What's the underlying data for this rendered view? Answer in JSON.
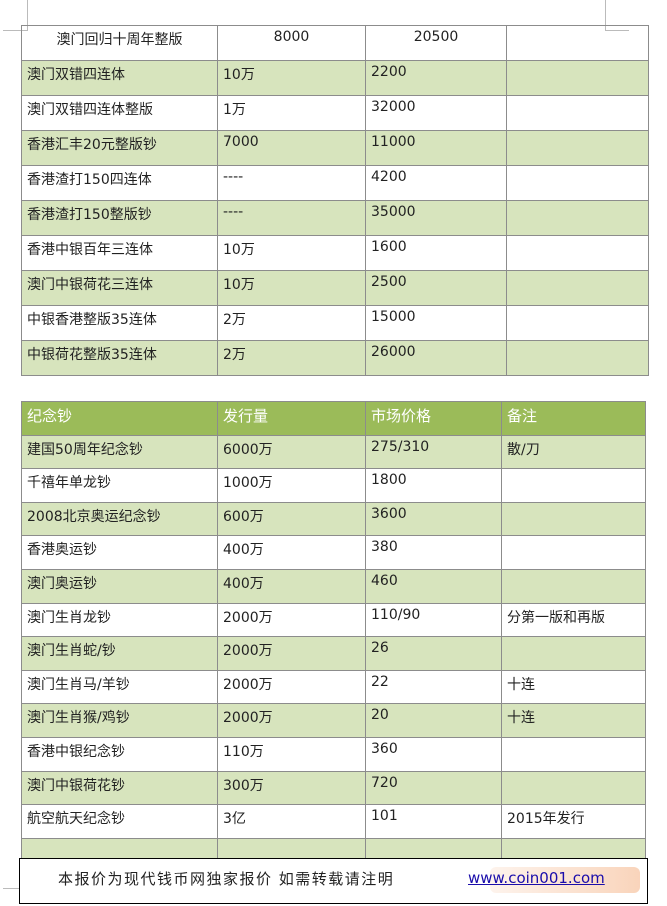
{
  "table1": {
    "rows": [
      [
        "澳门回归十周年整版",
        "8000",
        "20500",
        ""
      ],
      [
        "澳门双错四连体",
        "10万",
        "2200",
        ""
      ],
      [
        "澳门双错四连体整版",
        "1万",
        "32000",
        ""
      ],
      [
        "香港汇丰20元整版钞",
        "7000",
        "11000",
        ""
      ],
      [
        "香港渣打150四连体",
        "----",
        "4200",
        ""
      ],
      [
        "香港渣打150整版钞",
        "----",
        "35000",
        ""
      ],
      [
        "香港中银百年三连体",
        "10万",
        "1600",
        ""
      ],
      [
        "澳门中银荷花三连体",
        "10万",
        "2500",
        ""
      ],
      [
        "中银香港整版35连体",
        "2万",
        "15000",
        ""
      ],
      [
        "中银荷花整版35连体",
        "2万",
        "26000",
        ""
      ]
    ]
  },
  "table2": {
    "headers": [
      "纪念钞",
      "发行量",
      "市场价格",
      "备注"
    ],
    "header_color": "#9bbb59",
    "row_color": "#d7e4bd",
    "rows": [
      [
        "建国50周年纪念钞",
        "6000万",
        "275/310",
        "散/刀"
      ],
      [
        "千禧年单龙钞",
        "1000万",
        "1800",
        ""
      ],
      [
        "2008北京奥运纪念钞",
        "600万",
        "3600",
        ""
      ],
      [
        "香港奥运钞",
        "400万",
        "380",
        ""
      ],
      [
        "澳门奥运钞",
        "400万",
        "460",
        ""
      ],
      [
        "澳门生肖龙钞",
        "2000万",
        "110/90",
        "分第一版和再版"
      ],
      [
        "澳门生肖蛇/钞",
        "2000万",
        "26",
        ""
      ],
      [
        "澳门生肖马/羊钞",
        "2000万",
        "22",
        "十连"
      ],
      [
        "澳门生肖猴/鸡钞",
        "2000万",
        "20",
        "十连"
      ],
      [
        "香港中银纪念钞",
        "110万",
        "360",
        ""
      ],
      [
        "澳门中银荷花钞",
        "300万",
        "720",
        ""
      ],
      [
        "航空航天纪念钞",
        "3亿",
        "101",
        "2015年发行"
      ],
      [
        "",
        "",
        "",
        ""
      ]
    ]
  },
  "footer": {
    "notice": "本报价为现代钱币网独家报价 如需转载请注明",
    "link": "www.coin001.com",
    "watermark": "coin001.com"
  }
}
